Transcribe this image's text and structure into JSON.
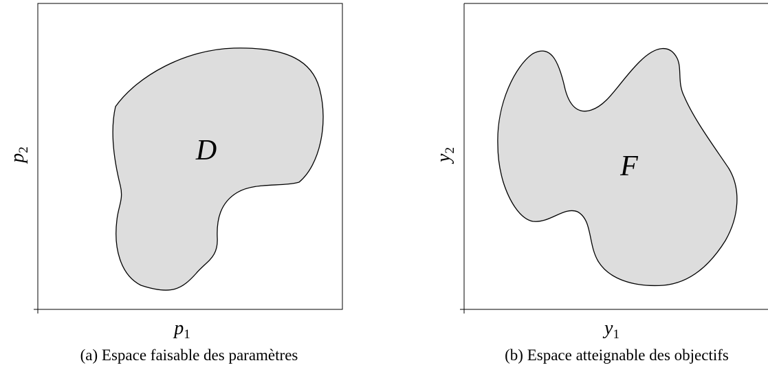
{
  "panels": [
    {
      "region": "D",
      "x_label": {
        "symbol": "p",
        "index": "1"
      },
      "y_label": {
        "symbol": "p",
        "index": "2"
      },
      "caption": "(a) Espace faisable des paramètres"
    },
    {
      "region": "F",
      "x_label": {
        "symbol": "y",
        "index": "1"
      },
      "y_label": {
        "symbol": "y",
        "index": "2"
      },
      "caption": "(b) Espace atteignable des objectifs"
    }
  ]
}
